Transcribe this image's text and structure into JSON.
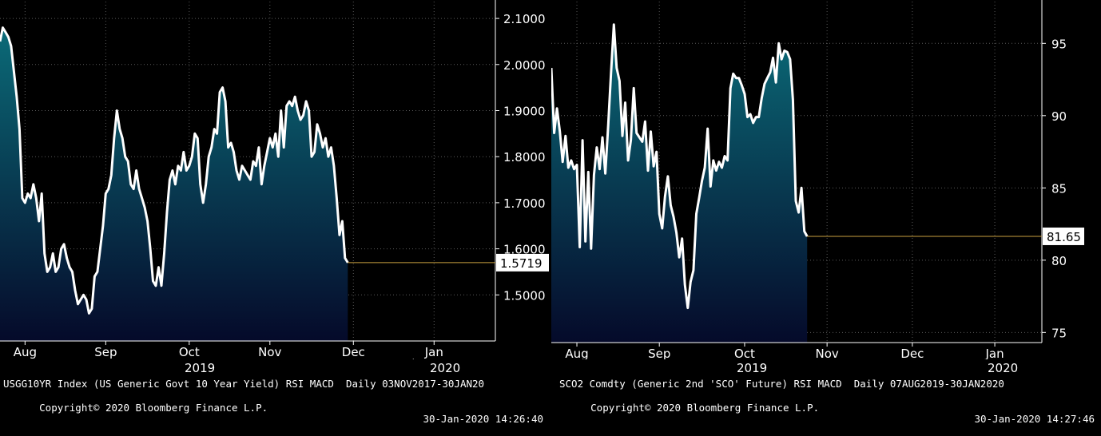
{
  "colors": {
    "background": "#000000",
    "grid": "#5a5a5a",
    "line": "#ffffff",
    "fill_top": "#0b6b78",
    "fill_bottom": "#050a2a",
    "price_tag_bg": "#ffffff",
    "price_tag_text": "#000000",
    "text": "#ffffff"
  },
  "chart_data": [
    {
      "type": "area",
      "ticker_line": "USGG10YR Index (US Generic Govt 10 Year Yield) RSI MACD  Daily 03NOV2017-30JAN20",
      "copyright": "Copyright© 2020 Bloomberg Finance L.P.",
      "timestamp": "30-Jan-2020 14:26:40",
      "last_value_label": "1.5719",
      "month_labels": [
        "Aug",
        "Sep",
        "Oct",
        "Nov",
        "Dec",
        "Jan"
      ],
      "month_x": [
        9,
        38,
        68,
        97,
        127,
        156
      ],
      "year_labels": [
        "2019",
        "2020"
      ],
      "year_x": [
        70,
        158
      ],
      "y_ticks": [
        "2.1000",
        "2.0000",
        "1.9000",
        "1.8000",
        "1.7000",
        "1.6000",
        "1.5000"
      ],
      "y_tick_values": [
        2.1,
        2.0,
        1.9,
        1.8,
        1.7,
        1.6,
        1.5
      ],
      "ylim": [
        1.4,
        2.14
      ],
      "xlim": [
        0,
        172
      ],
      "x_unit": "day index from 1 Aug 2019",
      "series": [
        {
          "values": [
            [
              0,
              2.05
            ],
            [
              1,
              2.08
            ],
            [
              2,
              2.07
            ],
            [
              3,
              2.06
            ],
            [
              4,
              2.04
            ],
            [
              6,
              1.93
            ],
            [
              7,
              1.86
            ],
            [
              8,
              1.71
            ],
            [
              9,
              1.7
            ],
            [
              10,
              1.72
            ],
            [
              11,
              1.71
            ],
            [
              12,
              1.74
            ],
            [
              13,
              1.71
            ],
            [
              14,
              1.66
            ],
            [
              15,
              1.72
            ],
            [
              16,
              1.59
            ],
            [
              17,
              1.55
            ],
            [
              18,
              1.56
            ],
            [
              19,
              1.59
            ],
            [
              20,
              1.55
            ],
            [
              21,
              1.56
            ],
            [
              22,
              1.6
            ],
            [
              23,
              1.61
            ],
            [
              24,
              1.58
            ],
            [
              25,
              1.56
            ],
            [
              26,
              1.55
            ],
            [
              27,
              1.51
            ],
            [
              28,
              1.48
            ],
            [
              29,
              1.49
            ],
            [
              30,
              1.5
            ],
            [
              31,
              1.49
            ],
            [
              32,
              1.46
            ],
            [
              33,
              1.47
            ],
            [
              34,
              1.54
            ],
            [
              35,
              1.55
            ],
            [
              36,
              1.6
            ],
            [
              37,
              1.65
            ],
            [
              38,
              1.72
            ],
            [
              39,
              1.73
            ],
            [
              40,
              1.76
            ],
            [
              41,
              1.84
            ],
            [
              42,
              1.9
            ],
            [
              43,
              1.86
            ],
            [
              44,
              1.84
            ],
            [
              45,
              1.8
            ],
            [
              46,
              1.79
            ],
            [
              47,
              1.74
            ],
            [
              48,
              1.73
            ],
            [
              49,
              1.77
            ],
            [
              50,
              1.73
            ],
            [
              51,
              1.71
            ],
            [
              52,
              1.69
            ],
            [
              53,
              1.66
            ],
            [
              54,
              1.6
            ],
            [
              55,
              1.53
            ],
            [
              56,
              1.52
            ],
            [
              57,
              1.56
            ],
            [
              58,
              1.52
            ],
            [
              59,
              1.59
            ],
            [
              60,
              1.68
            ],
            [
              61,
              1.75
            ],
            [
              62,
              1.77
            ],
            [
              63,
              1.74
            ],
            [
              64,
              1.78
            ],
            [
              65,
              1.77
            ],
            [
              66,
              1.81
            ],
            [
              67,
              1.77
            ],
            [
              68,
              1.78
            ],
            [
              69,
              1.8
            ],
            [
              70,
              1.85
            ],
            [
              71,
              1.84
            ],
            [
              72,
              1.74
            ],
            [
              73,
              1.7
            ],
            [
              74,
              1.74
            ],
            [
              75,
              1.8
            ],
            [
              76,
              1.82
            ],
            [
              77,
              1.86
            ],
            [
              78,
              1.85
            ],
            [
              79,
              1.94
            ],
            [
              80,
              1.95
            ],
            [
              81,
              1.92
            ],
            [
              82,
              1.82
            ],
            [
              83,
              1.83
            ],
            [
              84,
              1.81
            ],
            [
              85,
              1.77
            ],
            [
              86,
              1.75
            ],
            [
              87,
              1.78
            ],
            [
              88,
              1.77
            ],
            [
              89,
              1.76
            ],
            [
              90,
              1.75
            ],
            [
              91,
              1.79
            ],
            [
              92,
              1.78
            ],
            [
              93,
              1.82
            ],
            [
              94,
              1.74
            ],
            [
              95,
              1.78
            ],
            [
              96,
              1.81
            ],
            [
              97,
              1.84
            ],
            [
              98,
              1.82
            ],
            [
              99,
              1.85
            ],
            [
              100,
              1.8
            ],
            [
              101,
              1.9
            ],
            [
              102,
              1.82
            ],
            [
              103,
              1.91
            ],
            [
              104,
              1.92
            ],
            [
              105,
              1.91
            ],
            [
              106,
              1.93
            ],
            [
              107,
              1.9
            ],
            [
              108,
              1.88
            ],
            [
              109,
              1.89
            ],
            [
              110,
              1.92
            ],
            [
              111,
              1.9
            ],
            [
              112,
              1.8
            ],
            [
              113,
              1.81
            ],
            [
              114,
              1.87
            ],
            [
              115,
              1.85
            ],
            [
              116,
              1.82
            ],
            [
              117,
              1.84
            ],
            [
              118,
              1.8
            ],
            [
              119,
              1.82
            ],
            [
              120,
              1.78
            ],
            [
              121,
              1.71
            ],
            [
              122,
              1.63
            ],
            [
              123,
              1.66
            ],
            [
              124,
              1.58
            ],
            [
              125,
              1.57
            ]
          ]
        }
      ]
    },
    {
      "type": "area",
      "ticker_line": "SCO2 Comdty (Generic 2nd 'SCO' Future) RSI MACD  Daily 07AUG2019-30JAN2020",
      "copyright": "Copyright© 2020 Bloomberg Finance L.P.",
      "timestamp": "30-Jan-2020 14:27:46",
      "last_value_label": "81.65",
      "month_labels": [
        "Aug",
        "Sep",
        "Oct",
        "Nov",
        "Dec",
        "Jan"
      ],
      "month_x": [
        9,
        38,
        68,
        97,
        127,
        156
      ],
      "year_labels": [
        "2019",
        "2020"
      ],
      "year_x": [
        70,
        158
      ],
      "y_ticks": [
        "95",
        "90",
        "85",
        "80",
        "75"
      ],
      "y_tick_values": [
        95,
        90,
        85,
        80,
        75
      ],
      "ylim": [
        74.3,
        98.0
      ],
      "xlim": [
        0,
        172
      ],
      "x_unit": "day index from 1 Aug 2019",
      "series": [
        {
          "values": [
            [
              0,
              93.3
            ],
            [
              1,
              88.8
            ],
            [
              2,
              90.5
            ],
            [
              3,
              88.9
            ],
            [
              4,
              86.8
            ],
            [
              5,
              88.6
            ],
            [
              6,
              86.4
            ],
            [
              7,
              86.9
            ],
            [
              8,
              86.3
            ],
            [
              9,
              86.6
            ],
            [
              10,
              80.9
            ],
            [
              11,
              88.3
            ],
            [
              12,
              81.3
            ],
            [
              13,
              86.1
            ],
            [
              14,
              80.8
            ],
            [
              15,
              85.9
            ],
            [
              16,
              87.8
            ],
            [
              17,
              86.3
            ],
            [
              18,
              88.5
            ],
            [
              19,
              86.0
            ],
            [
              20,
              89.3
            ],
            [
              21,
              92.9
            ],
            [
              22,
              96.3
            ],
            [
              23,
              93.3
            ],
            [
              24,
              92.4
            ],
            [
              25,
              88.6
            ],
            [
              26,
              90.9
            ],
            [
              27,
              86.9
            ],
            [
              28,
              88.3
            ],
            [
              29,
              91.9
            ],
            [
              30,
              88.8
            ],
            [
              31,
              88.5
            ],
            [
              32,
              88.2
            ],
            [
              33,
              89.6
            ],
            [
              34,
              86.2
            ],
            [
              35,
              88.9
            ],
            [
              36,
              86.5
            ],
            [
              37,
              87.5
            ],
            [
              38,
              83.2
            ],
            [
              39,
              82.2
            ],
            [
              40,
              84.4
            ],
            [
              41,
              85.8
            ],
            [
              42,
              83.8
            ],
            [
              43,
              83.0
            ],
            [
              44,
              81.9
            ],
            [
              45,
              80.2
            ],
            [
              46,
              81.5
            ],
            [
              47,
              78.3
            ],
            [
              48,
              76.7
            ],
            [
              49,
              78.5
            ],
            [
              50,
              79.3
            ],
            [
              51,
              83.2
            ],
            [
              52,
              84.3
            ],
            [
              53,
              85.5
            ],
            [
              54,
              86.4
            ],
            [
              55,
              89.1
            ],
            [
              56,
              85.1
            ],
            [
              57,
              86.9
            ],
            [
              58,
              86.2
            ],
            [
              59,
              86.8
            ],
            [
              60,
              86.4
            ],
            [
              61,
              87.2
            ],
            [
              62,
              86.9
            ],
            [
              63,
              91.9
            ],
            [
              64,
              92.9
            ],
            [
              65,
              92.6
            ],
            [
              66,
              92.6
            ],
            [
              67,
              92.1
            ],
            [
              68,
              91.5
            ],
            [
              69,
              89.9
            ],
            [
              70,
              90.1
            ],
            [
              71,
              89.5
            ],
            [
              72,
              89.9
            ],
            [
              73,
              89.9
            ],
            [
              74,
              91.2
            ],
            [
              75,
              92.2
            ],
            [
              76,
              92.6
            ],
            [
              77,
              93.0
            ],
            [
              78,
              94.0
            ],
            [
              79,
              92.3
            ],
            [
              80,
              95.0
            ],
            [
              81,
              93.9
            ],
            [
              82,
              94.5
            ],
            [
              83,
              94.4
            ],
            [
              84,
              93.9
            ],
            [
              85,
              91.1
            ],
            [
              86,
              84.1
            ],
            [
              87,
              83.3
            ],
            [
              88,
              85.0
            ],
            [
              89,
              82.0
            ],
            [
              90,
              81.65
            ]
          ]
        }
      ]
    }
  ]
}
